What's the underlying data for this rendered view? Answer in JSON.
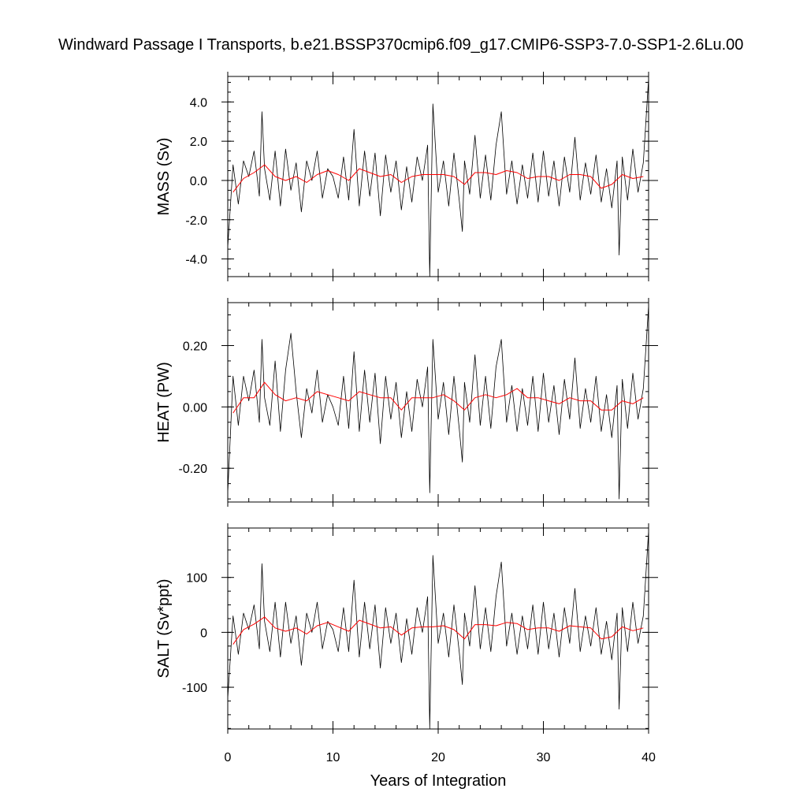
{
  "chart_data": {
    "type": "line",
    "title": "Windward Passage I Transports, b.e21.BSSP370cmip6.f09_g17.CMIP6-SSP3-7.0-SSP1-2.6Lu.00",
    "xlabel": "Years of Integration",
    "xlim": [
      0,
      40
    ],
    "xticks": [
      "0",
      "10",
      "20",
      "30",
      "40"
    ],
    "panels": [
      {
        "ylabel": "MASS (Sv)",
        "ylim": [
          -4.9,
          5.3
        ],
        "yticks": [
          {
            "value": 4.0,
            "label": "4.0"
          },
          {
            "value": 2.0,
            "label": "2.0"
          },
          {
            "value": 0.0,
            "label": "0.0"
          },
          {
            "value": -2.0,
            "label": "-2.0"
          },
          {
            "value": -4.0,
            "label": "-4.0"
          }
        ],
        "series": [
          {
            "style": "monthly",
            "color": "#000000",
            "x": [
              0,
              0.5,
              1,
              1.5,
              2,
              2.5,
              3,
              3.25,
              3.5,
              4,
              4.5,
              5,
              5.5,
              6,
              6.5,
              7,
              7.5,
              8,
              8.5,
              9,
              9.5,
              10,
              10.5,
              11,
              11.5,
              12,
              12.5,
              13,
              13.5,
              14,
              14.5,
              15,
              15.5,
              16,
              16.5,
              17,
              17.5,
              18,
              18.5,
              19,
              19.2,
              19.5,
              20,
              20.5,
              21,
              21.5,
              22,
              22.3,
              22.5,
              23,
              23.5,
              24,
              24.5,
              25,
              25.5,
              26,
              26.5,
              27,
              27.5,
              28,
              28.5,
              29,
              29.5,
              30,
              30.5,
              31,
              31.5,
              32,
              32.5,
              33,
              33.5,
              34,
              34.5,
              35,
              35.5,
              36,
              36.5,
              37,
              37.2,
              37.5,
              38,
              38.5,
              39,
              39.5,
              40
            ],
            "y": [
              -3.4,
              0.8,
              -1.2,
              1.0,
              0.2,
              1.5,
              -0.8,
              3.5,
              0.6,
              -1.0,
              1.5,
              -1.3,
              1.6,
              -0.5,
              0.9,
              -1.6,
              1.0,
              0.0,
              1.5,
              -0.9,
              0.6,
              0.2,
              -0.9,
              1.2,
              -1.0,
              2.6,
              -1.3,
              1.5,
              -0.8,
              1.4,
              -1.8,
              1.3,
              -0.6,
              1.0,
              -1.5,
              0.7,
              -1.1,
              1.2,
              0.0,
              1.8,
              -4.9,
              3.9,
              -0.6,
              1.0,
              -1.3,
              1.4,
              -1.0,
              -2.6,
              1.0,
              -0.7,
              2.3,
              -0.9,
              1.3,
              -1.0,
              1.8,
              3.5,
              -0.7,
              1.0,
              -1.2,
              0.8,
              -0.9,
              1.4,
              -1.1,
              1.5,
              -0.8,
              1.0,
              -1.3,
              1.2,
              -0.6,
              2.2,
              -1.0,
              0.9,
              -0.7,
              1.3,
              -1.1,
              0.6,
              -1.4,
              1.0,
              -3.8,
              1.2,
              -1.0,
              1.6,
              -0.6,
              0.9,
              5.2
            ]
          },
          {
            "style": "annual",
            "color": "#ff0000",
            "x": [
              0.5,
              1.5,
              2.5,
              3.5,
              4.5,
              5.5,
              6.5,
              7.5,
              8.5,
              9.5,
              10.5,
              11.5,
              12.5,
              13.5,
              14.5,
              15.5,
              16.5,
              17.5,
              18.5,
              19.5,
              20.5,
              21.5,
              22.5,
              23.5,
              24.5,
              25.5,
              26.5,
              27.5,
              28.5,
              29.5,
              30.5,
              31.5,
              32.5,
              33.5,
              34.5,
              35.5,
              36.5,
              37.5,
              38.5,
              39.5
            ],
            "y": [
              -0.6,
              0.1,
              0.4,
              0.8,
              0.2,
              0.0,
              0.2,
              -0.1,
              0.3,
              0.5,
              0.3,
              0.0,
              0.6,
              0.4,
              0.2,
              0.3,
              -0.1,
              0.2,
              0.3,
              0.3,
              0.3,
              0.2,
              -0.2,
              0.4,
              0.4,
              0.3,
              0.5,
              0.4,
              0.1,
              0.2,
              0.2,
              0.0,
              0.3,
              0.3,
              0.2,
              -0.4,
              -0.2,
              0.3,
              0.1,
              0.2
            ]
          }
        ]
      },
      {
        "ylabel": "HEAT (PW)",
        "ylim": [
          -0.31,
          0.34
        ],
        "yticks": [
          {
            "value": 0.2,
            "label": "0.20"
          },
          {
            "value": 0.0,
            "label": "0.00"
          },
          {
            "value": -0.2,
            "label": "-0.20"
          }
        ],
        "series": [
          {
            "style": "monthly",
            "color": "#000000",
            "x": [
              0,
              0.5,
              1,
              1.5,
              2,
              2.5,
              3,
              3.25,
              3.5,
              4,
              4.5,
              5,
              5.5,
              6,
              6.5,
              7,
              7.5,
              8,
              8.5,
              9,
              9.5,
              10,
              10.5,
              11,
              11.5,
              12,
              12.5,
              13,
              13.5,
              14,
              14.5,
              15,
              15.5,
              16,
              16.5,
              17,
              17.5,
              18,
              18.5,
              19,
              19.2,
              19.5,
              20,
              20.5,
              21,
              21.5,
              22,
              22.3,
              22.5,
              23,
              23.5,
              24,
              24.5,
              25,
              25.5,
              26,
              26.5,
              27,
              27.5,
              28,
              28.5,
              29,
              29.5,
              30,
              30.5,
              31,
              31.5,
              32,
              32.5,
              33,
              33.5,
              34,
              34.5,
              35,
              35.5,
              36,
              36.5,
              37,
              37.2,
              37.5,
              38,
              38.5,
              39,
              39.5,
              40
            ],
            "y": [
              -0.28,
              0.1,
              -0.06,
              0.1,
              0.02,
              0.12,
              -0.05,
              0.22,
              0.03,
              -0.06,
              0.15,
              -0.08,
              0.12,
              0.24,
              0.05,
              -0.1,
              0.06,
              -0.02,
              0.12,
              -0.05,
              0.04,
              0.0,
              -0.06,
              0.1,
              -0.07,
              0.18,
              -0.08,
              0.12,
              -0.05,
              0.11,
              -0.12,
              0.1,
              -0.04,
              0.08,
              -0.1,
              0.05,
              -0.08,
              0.09,
              0.0,
              0.13,
              -0.28,
              0.22,
              -0.04,
              0.08,
              -0.09,
              0.1,
              -0.07,
              -0.18,
              0.08,
              -0.05,
              0.17,
              -0.06,
              0.1,
              -0.07,
              0.13,
              0.22,
              -0.05,
              0.07,
              -0.08,
              0.06,
              -0.06,
              0.1,
              -0.08,
              0.11,
              -0.05,
              0.07,
              -0.09,
              0.09,
              -0.04,
              0.16,
              -0.07,
              0.06,
              -0.05,
              0.1,
              -0.08,
              0.04,
              -0.1,
              0.07,
              -0.3,
              0.09,
              -0.07,
              0.11,
              -0.04,
              0.06,
              0.33
            ]
          },
          {
            "style": "annual",
            "color": "#ff0000",
            "x": [
              0.5,
              1.5,
              2.5,
              3.5,
              4.5,
              5.5,
              6.5,
              7.5,
              8.5,
              9.5,
              10.5,
              11.5,
              12.5,
              13.5,
              14.5,
              15.5,
              16.5,
              17.5,
              18.5,
              19.5,
              20.5,
              21.5,
              22.5,
              23.5,
              24.5,
              25.5,
              26.5,
              27.5,
              28.5,
              29.5,
              30.5,
              31.5,
              32.5,
              33.5,
              34.5,
              35.5,
              36.5,
              37.5,
              38.5,
              39.5
            ],
            "y": [
              -0.02,
              0.03,
              0.03,
              0.08,
              0.04,
              0.02,
              0.03,
              0.02,
              0.05,
              0.04,
              0.03,
              0.02,
              0.05,
              0.04,
              0.03,
              0.03,
              -0.01,
              0.03,
              0.03,
              0.03,
              0.04,
              0.02,
              -0.01,
              0.03,
              0.04,
              0.03,
              0.04,
              0.06,
              0.03,
              0.03,
              0.02,
              0.01,
              0.03,
              0.02,
              0.02,
              -0.01,
              -0.01,
              0.02,
              0.01,
              0.03
            ]
          }
        ]
      },
      {
        "ylabel": "SALT (Sv*ppt)",
        "ylim": [
          -176,
          190
        ],
        "yticks": [
          {
            "value": 100,
            "label": "100"
          },
          {
            "value": 0,
            "label": "0"
          },
          {
            "value": -100,
            "label": "-100"
          }
        ],
        "series": [
          {
            "style": "monthly",
            "color": "#000000",
            "x": [
              0,
              0.5,
              1,
              1.5,
              2,
              2.5,
              3,
              3.25,
              3.5,
              4,
              4.5,
              5,
              5.5,
              6,
              6.5,
              7,
              7.5,
              8,
              8.5,
              9,
              9.5,
              10,
              10.5,
              11,
              11.5,
              12,
              12.5,
              13,
              13.5,
              14,
              14.5,
              15,
              15.5,
              16,
              16.5,
              17,
              17.5,
              18,
              18.5,
              19,
              19.2,
              19.5,
              20,
              20.5,
              21,
              21.5,
              22,
              22.3,
              22.5,
              23,
              23.5,
              24,
              24.5,
              25,
              25.5,
              26,
              26.5,
              27,
              27.5,
              28,
              28.5,
              29,
              29.5,
              30,
              30.5,
              31,
              31.5,
              32,
              32.5,
              33,
              33.5,
              34,
              34.5,
              35,
              35.5,
              36,
              36.5,
              37,
              37.2,
              37.5,
              38,
              38.5,
              39,
              39.5,
              40
            ],
            "y": [
              -120,
              30,
              -40,
              35,
              5,
              50,
              -30,
              125,
              20,
              -35,
              55,
              -45,
              55,
              -20,
              30,
              -60,
              35,
              0,
              55,
              -30,
              20,
              5,
              -35,
              45,
              -35,
              95,
              -45,
              55,
              -30,
              50,
              -65,
              45,
              -20,
              35,
              -55,
              25,
              -40,
              45,
              0,
              65,
              -175,
              140,
              -20,
              35,
              -45,
              50,
              -35,
              -95,
              35,
              -25,
              85,
              -30,
              45,
              -35,
              65,
              128,
              -25,
              35,
              -40,
              30,
              -30,
              50,
              -40,
              55,
              -30,
              35,
              -45,
              45,
              -20,
              80,
              -35,
              30,
              -25,
              45,
              -40,
              20,
              -50,
              35,
              -140,
              45,
              -35,
              55,
              -20,
              30,
              185
            ]
          },
          {
            "style": "annual",
            "color": "#ff0000",
            "x": [
              0.5,
              1.5,
              2.5,
              3.5,
              4.5,
              5.5,
              6.5,
              7.5,
              8.5,
              9.5,
              10.5,
              11.5,
              12.5,
              13.5,
              14.5,
              15.5,
              16.5,
              17.5,
              18.5,
              19.5,
              20.5,
              21.5,
              22.5,
              23.5,
              24.5,
              25.5,
              26.5,
              27.5,
              28.5,
              29.5,
              30.5,
              31.5,
              32.5,
              33.5,
              34.5,
              35.5,
              36.5,
              37.5,
              38.5,
              39.5
            ],
            "y": [
              -22,
              5,
              15,
              28,
              8,
              2,
              8,
              -3,
              12,
              18,
              10,
              2,
              22,
              15,
              8,
              10,
              -5,
              8,
              10,
              10,
              12,
              5,
              -12,
              14,
              14,
              12,
              18,
              16,
              5,
              8,
              8,
              2,
              12,
              10,
              8,
              -12,
              -8,
              10,
              3,
              8
            ]
          }
        ]
      }
    ]
  }
}
